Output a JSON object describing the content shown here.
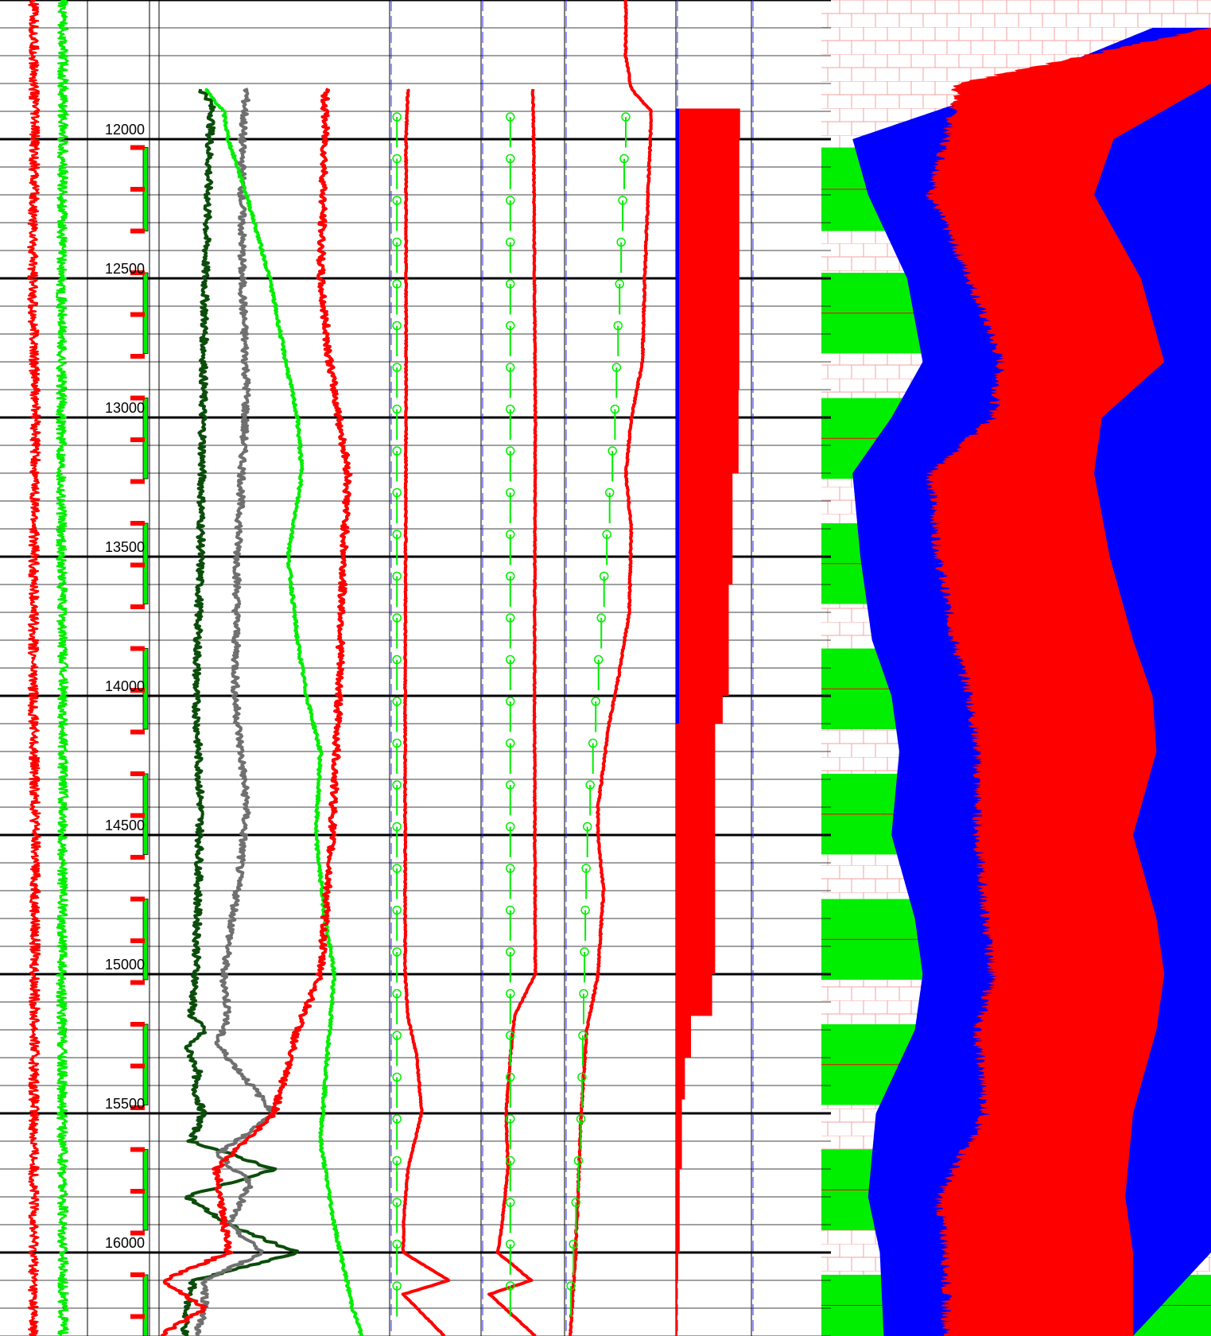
{
  "chart_data": {
    "type": "line",
    "title": "",
    "depth_axis": {
      "range": [
        11500,
        16300
      ],
      "tick_labels": [
        "12000",
        "12500",
        "13000",
        "13500",
        "14000",
        "14500",
        "15000",
        "15500",
        "16000"
      ],
      "major_step": 500,
      "minor_step": 100
    },
    "grid": true,
    "colors": {
      "red": "#ff0000",
      "bright_green": "#00ee00",
      "dark_green": "#0b4d0b",
      "gray": "#707070",
      "blue": "#0000ff",
      "pink_pattern": "#f4a0a0",
      "black": "#000000"
    },
    "bed_markers": {
      "description_color": "#00ee00",
      "beds": [
        [
          12030,
          12330
        ],
        [
          12480,
          12770
        ],
        [
          12930,
          13220
        ],
        [
          13380,
          13670
        ],
        [
          13830,
          14120
        ],
        [
          14280,
          14570
        ],
        [
          14730,
          15020
        ],
        [
          15180,
          15470
        ],
        [
          15630,
          15920
        ],
        [
          16080,
          16300
        ]
      ],
      "ticks": [
        12030,
        12180,
        12330,
        12480,
        12630,
        12780,
        12930,
        13080,
        13230,
        13380,
        13530,
        13680,
        13830,
        13980,
        14130,
        14280,
        14430,
        14580,
        14730,
        14880,
        15030,
        15180,
        15330,
        15480,
        15630,
        15780,
        15930,
        16080,
        16230
      ]
    },
    "series": [
      {
        "track": 3,
        "color": "#0b4d0b",
        "depth": [
          11820,
          11860,
          11900,
          12000,
          12500,
          13000,
          13500,
          14000,
          14400,
          15000,
          15150,
          15200,
          15260,
          15350,
          15400,
          15500,
          15600,
          15700,
          15800,
          15900,
          16000,
          16100,
          16200,
          16300
        ],
        "value": [
          0.18,
          0.22,
          0.23,
          0.22,
          0.2,
          0.19,
          0.18,
          0.16,
          0.18,
          0.16,
          0.14,
          0.2,
          0.12,
          0.17,
          0.15,
          0.19,
          0.14,
          0.5,
          0.12,
          0.3,
          0.6,
          0.15,
          0.12,
          0.11
        ]
      },
      {
        "track": 3,
        "color": "#707070",
        "depth": [
          11820,
          12000,
          12500,
          12900,
          13500,
          14000,
          14400,
          14700,
          15000,
          15150,
          15250,
          15400,
          15500,
          15650,
          15750,
          15900,
          16000,
          16100,
          16200,
          16300
        ],
        "value": [
          0.38,
          0.36,
          0.36,
          0.38,
          0.34,
          0.33,
          0.38,
          0.34,
          0.28,
          0.3,
          0.25,
          0.4,
          0.5,
          0.25,
          0.4,
          0.3,
          0.45,
          0.2,
          0.2,
          0.16
        ]
      },
      {
        "track": 3,
        "color": "#00ee00",
        "depth": [
          11820,
          11900,
          12000,
          12200,
          12500,
          12800,
          13000,
          13200,
          13500,
          13800,
          14000,
          14200,
          14500,
          14800,
          15000,
          15300,
          15600,
          15900,
          16200,
          16300
        ],
        "value": [
          0.2,
          0.28,
          0.3,
          0.38,
          0.48,
          0.55,
          0.6,
          0.62,
          0.56,
          0.6,
          0.64,
          0.7,
          0.68,
          0.72,
          0.76,
          0.73,
          0.7,
          0.76,
          0.84,
          0.88
        ]
      },
      {
        "track": 3,
        "color": "#ff0000",
        "depth": [
          11820,
          12000,
          12500,
          12800,
          13000,
          13200,
          13500,
          14000,
          14500,
          15000,
          15200,
          15500,
          15700,
          16000,
          16100,
          16200,
          16300
        ],
        "value": [
          0.72,
          0.72,
          0.7,
          0.74,
          0.78,
          0.82,
          0.8,
          0.78,
          0.75,
          0.7,
          0.6,
          0.5,
          0.25,
          0.3,
          0.02,
          0.2,
          0.0
        ]
      },
      {
        "track": 4,
        "color": "#ff0000",
        "depth": [
          11820,
          12000,
          13000,
          14000,
          15000,
          15150,
          15300,
          15500,
          15700,
          15900,
          16000,
          16100,
          16150,
          16300
        ],
        "value": [
          0.2,
          0.18,
          0.18,
          0.17,
          0.17,
          0.2,
          0.3,
          0.35,
          0.2,
          0.15,
          0.15,
          0.65,
          0.15,
          0.6
        ]
      },
      {
        "track": 5,
        "color": "#ff0000",
        "depth": [
          11820,
          12000,
          13000,
          14000,
          15000,
          15150,
          15300,
          15500,
          15700,
          15900,
          16000,
          16100,
          16150,
          16300
        ],
        "value": [
          0.62,
          0.63,
          0.65,
          0.64,
          0.65,
          0.4,
          0.35,
          0.3,
          0.32,
          0.25,
          0.2,
          0.6,
          0.1,
          0.65
        ]
      },
      {
        "track": 6,
        "color": "#ff0000",
        "depth": [
          11500,
          11700,
          11820,
          11900,
          12200,
          12500,
          12800,
          13000,
          13200,
          13400,
          13700,
          13900,
          14100,
          14400,
          14500,
          14700,
          15000,
          15200,
          15500,
          15800,
          16000,
          16300
        ],
        "value": [
          0.55,
          0.55,
          0.6,
          0.78,
          0.75,
          0.72,
          0.7,
          0.6,
          0.55,
          0.6,
          0.58,
          0.5,
          0.4,
          0.3,
          0.3,
          0.35,
          0.3,
          0.2,
          0.15,
          0.12,
          0.1,
          0.05
        ]
      },
      {
        "track": 1,
        "color": "#ff0000",
        "depth": [
          11500,
          12000,
          12500,
          13000,
          13500,
          14000,
          14500,
          15000,
          15500,
          16000,
          16300
        ],
        "value": [
          0.33,
          0.35,
          0.32,
          0.36,
          0.34,
          0.33,
          0.36,
          0.35,
          0.34,
          0.34,
          0.33
        ]
      },
      {
        "track": 1,
        "color": "#00ee00",
        "depth": [
          11500,
          12000,
          12500,
          13000,
          13500,
          14000,
          14500,
          15000,
          15500,
          16000,
          16300
        ],
        "value": [
          0.7,
          0.7,
          0.68,
          0.68,
          0.68,
          0.7,
          0.7,
          0.68,
          0.69,
          0.7,
          0.7
        ]
      }
    ],
    "profile": {
      "track": 8,
      "pink_background": true,
      "depth": [
        11600,
        11800,
        12000,
        12200,
        12500,
        12800,
        13000,
        13200,
        13500,
        13800,
        14000,
        14200,
        14500,
        14800,
        15000,
        15200,
        15500,
        15800,
        16000,
        16300
      ],
      "blue_left": [
        0.85,
        0.5,
        0.08,
        0.12,
        0.22,
        0.26,
        0.18,
        0.08,
        0.1,
        0.13,
        0.18,
        0.2,
        0.18,
        0.24,
        0.26,
        0.24,
        0.14,
        0.12,
        0.15,
        0.16
      ],
      "red_left": [
        1.0,
        0.35,
        0.32,
        0.28,
        0.38,
        0.46,
        0.44,
        0.28,
        0.3,
        0.34,
        0.38,
        0.4,
        0.4,
        0.42,
        0.44,
        0.4,
        0.42,
        0.3,
        0.32,
        0.32
      ],
      "red_right": [
        1.0,
        1.0,
        0.75,
        0.7,
        0.82,
        0.88,
        0.72,
        0.7,
        0.74,
        0.8,
        0.85,
        0.86,
        0.8,
        0.86,
        0.88,
        0.86,
        0.8,
        0.78,
        0.8,
        0.8
      ],
      "blue_right": [
        1.0,
        1.0,
        1.0,
        1.0,
        1.0,
        1.0,
        1.0,
        1.0,
        1.0,
        1.0,
        1.0,
        1.0,
        1.0,
        1.0,
        1.0,
        1.0,
        1.0,
        1.0,
        1.0,
        0.8
      ],
      "green_bands": [
        [
          12030,
          12330
        ],
        [
          12480,
          12770
        ],
        [
          12930,
          13220
        ],
        [
          13380,
          13670
        ],
        [
          13830,
          14120
        ],
        [
          14280,
          14570
        ],
        [
          14730,
          15020
        ],
        [
          15180,
          15470
        ],
        [
          15630,
          15920
        ],
        [
          16080,
          16300
        ]
      ]
    },
    "step_fill": {
      "track": 7,
      "color": "#ff0000",
      "depth_start": 11890,
      "depth": [
        11890,
        12000,
        12900,
        13200,
        13600,
        14000,
        14100,
        15000,
        15150,
        15300,
        15450,
        15700,
        16000,
        16100,
        16300
      ],
      "value": [
        0.85,
        0.84,
        0.83,
        0.75,
        0.7,
        0.62,
        0.52,
        0.48,
        0.2,
        0.12,
        0.08,
        0.05,
        0.03,
        0.02,
        0.02
      ]
    },
    "point_markers": {
      "color": "#00ee00",
      "tracks": [
        4,
        5,
        6
      ]
    }
  }
}
